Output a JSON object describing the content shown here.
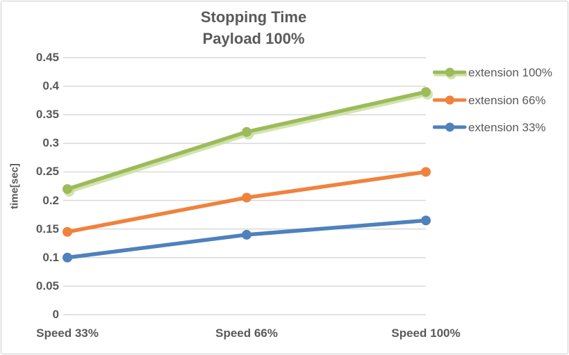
{
  "chart_data": {
    "type": "line",
    "title_lines": [
      "Stopping Time",
      "Payload 100%"
    ],
    "ylabel": "time[sec]",
    "xlabel": "",
    "categories": [
      "Speed 33%",
      "Speed 66%",
      "Speed 100%"
    ],
    "series": [
      {
        "name": "extension 100%",
        "color": "#9CBB59",
        "glow_color": "#C8DC9B",
        "values": [
          0.22,
          0.32,
          0.39
        ]
      },
      {
        "name": "extension 66%",
        "color": "#F0823D",
        "values": [
          0.145,
          0.205,
          0.25
        ]
      },
      {
        "name": "extension 33%",
        "color": "#4E81BD",
        "values": [
          0.1,
          0.14,
          0.165
        ]
      }
    ],
    "ylim": [
      0,
      0.45
    ],
    "ytick_step": 0.05,
    "grid": true,
    "legend_position": "top-right",
    "marker": "circle",
    "colors": {
      "text": "#595959",
      "gridline": "#D9D9D9",
      "frame_border": "#D0CECE",
      "background": "#FFFFFF"
    }
  }
}
